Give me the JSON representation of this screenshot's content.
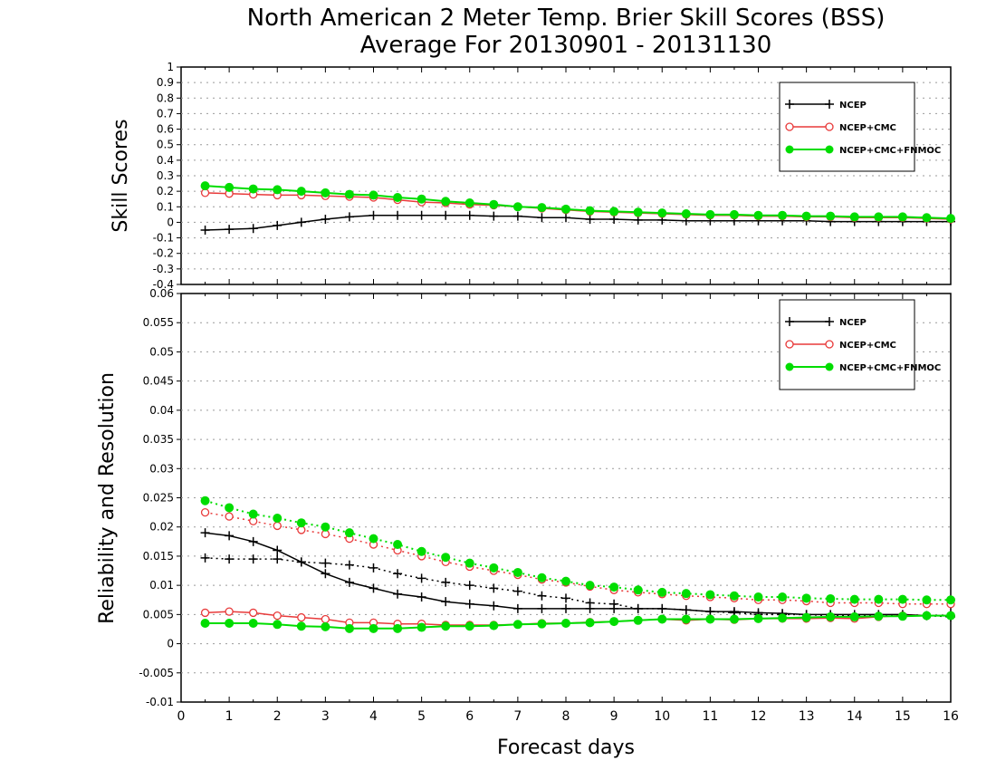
{
  "title_line1": "North American 2 Meter Temp. Brier Skill Scores (BSS)",
  "title_line2": "Average For 20130901 - 20131130",
  "colors": {
    "NCEP": "#000000",
    "NCEP+CMC": "#e83a3a",
    "NCEP+CMC+FNMOC": "#00dd00",
    "grid": "#9a9a9a",
    "axis": "#000000"
  },
  "chart_data": [
    {
      "type": "line",
      "ylabel": "Skill Scores",
      "xlabel": "",
      "xlim": [
        0,
        16
      ],
      "ylim": [
        -0.4,
        1
      ],
      "x_ticks": [
        0,
        1,
        2,
        3,
        4,
        5,
        6,
        7,
        8,
        9,
        10,
        11,
        12,
        13,
        14,
        15,
        16
      ],
      "y_ticks": [
        -0.4,
        -0.3,
        -0.2,
        -0.1,
        0,
        0.1,
        0.2,
        0.3,
        0.4,
        0.5,
        0.6,
        0.7,
        0.8,
        0.9,
        1
      ],
      "y_tick_labels": [
        "-0.4",
        "-0.3",
        "-0.2",
        "-0.1",
        "0",
        "0.1",
        "0.2",
        "0.3",
        "0.4",
        "0.5",
        "0.6",
        "0.7",
        "0.8",
        "0.9",
        "1"
      ],
      "grid": "horizontal dotted",
      "legend_position": "top-right",
      "x": [
        0.5,
        1,
        1.5,
        2,
        2.5,
        3,
        3.5,
        4,
        4.5,
        5,
        5.5,
        6,
        6.5,
        7,
        7.5,
        8,
        8.5,
        9,
        9.5,
        10,
        10.5,
        11,
        11.5,
        12,
        12.5,
        13,
        13.5,
        14,
        14.5,
        15,
        15.5,
        16
      ],
      "series": [
        {
          "name": "NCEP",
          "marker": "plus",
          "style": "solid",
          "values": [
            -0.05,
            -0.045,
            -0.04,
            -0.02,
            0.0,
            0.02,
            0.035,
            0.045,
            0.045,
            0.045,
            0.045,
            0.045,
            0.04,
            0.04,
            0.03,
            0.03,
            0.02,
            0.02,
            0.015,
            0.015,
            0.01,
            0.01,
            0.01,
            0.01,
            0.01,
            0.01,
            0.005,
            0.005,
            0.005,
            0.005,
            0.005,
            0.005
          ]
        },
        {
          "name": "NCEP+CMC",
          "marker": "open-circle",
          "style": "solid",
          "values": [
            0.19,
            0.185,
            0.18,
            0.175,
            0.175,
            0.17,
            0.165,
            0.16,
            0.145,
            0.13,
            0.125,
            0.115,
            0.11,
            0.1,
            0.09,
            0.08,
            0.07,
            0.065,
            0.06,
            0.055,
            0.05,
            0.045,
            0.045,
            0.04,
            0.04,
            0.035,
            0.035,
            0.03,
            0.03,
            0.03,
            0.025,
            0.02
          ]
        },
        {
          "name": "NCEP+CMC+FNMOC",
          "marker": "filled-circle",
          "style": "solid",
          "values": [
            0.235,
            0.225,
            0.215,
            0.21,
            0.2,
            0.19,
            0.18,
            0.175,
            0.16,
            0.15,
            0.135,
            0.125,
            0.115,
            0.1,
            0.095,
            0.085,
            0.075,
            0.07,
            0.065,
            0.06,
            0.055,
            0.05,
            0.05,
            0.045,
            0.045,
            0.04,
            0.04,
            0.035,
            0.035,
            0.035,
            0.03,
            0.025
          ]
        }
      ]
    },
    {
      "type": "line",
      "ylabel": "Reliability and Resolution",
      "xlabel": "Forecast days",
      "xlim": [
        0,
        16
      ],
      "ylim": [
        -0.01,
        0.06
      ],
      "x_ticks": [
        0,
        1,
        2,
        3,
        4,
        5,
        6,
        7,
        8,
        9,
        10,
        11,
        12,
        13,
        14,
        15,
        16
      ],
      "x_tick_labels": [
        "0",
        "1",
        "2",
        "3",
        "4",
        "5",
        "6",
        "7",
        "8",
        "9",
        "10",
        "11",
        "12",
        "13",
        "14",
        "15",
        "16"
      ],
      "y_ticks": [
        -0.01,
        -0.005,
        0,
        0.005,
        0.01,
        0.015,
        0.02,
        0.025,
        0.03,
        0.035,
        0.04,
        0.045,
        0.05,
        0.055,
        0.06
      ],
      "y_tick_labels": [
        "-0.01",
        "-0.005",
        "0",
        "0.005",
        "0.01",
        "0.015",
        "0.02",
        "0.025",
        "0.03",
        "0.035",
        "0.04",
        "0.045",
        "0.05",
        "0.055",
        "0.06"
      ],
      "grid": "horizontal dotted",
      "legend_position": "top-right",
      "x": [
        0.5,
        1,
        1.5,
        2,
        2.5,
        3,
        3.5,
        4,
        4.5,
        5,
        5.5,
        6,
        6.5,
        7,
        7.5,
        8,
        8.5,
        9,
        9.5,
        10,
        10.5,
        11,
        11.5,
        12,
        12.5,
        13,
        13.5,
        14,
        14.5,
        15,
        15.5,
        16
      ],
      "series": [
        {
          "name": "NCEP",
          "marker": "plus",
          "style": "solid",
          "values": [
            0.019,
            0.0185,
            0.0175,
            0.016,
            0.014,
            0.012,
            0.0105,
            0.0095,
            0.0085,
            0.008,
            0.0072,
            0.0068,
            0.0065,
            0.006,
            0.006,
            0.006,
            0.006,
            0.006,
            0.006,
            0.006,
            0.0058,
            0.0055,
            0.0055,
            0.0053,
            0.0052,
            0.005,
            0.005,
            0.005,
            0.005,
            0.005,
            0.0048,
            0.0048
          ]
        },
        {
          "name": "NCEP",
          "marker": "plus",
          "style": "dotted",
          "values": [
            0.0147,
            0.0145,
            0.0145,
            0.0145,
            0.014,
            0.0138,
            0.0135,
            0.013,
            0.012,
            0.0112,
            0.0105,
            0.01,
            0.0095,
            0.009,
            0.0082,
            0.0078,
            0.007,
            0.0068,
            0.006,
            0.006,
            0.0058,
            0.0055,
            0.0053,
            0.005,
            0.005,
            0.005,
            0.0048,
            0.0048,
            0.0048,
            0.0048,
            0.0048,
            0.0046
          ]
        },
        {
          "name": "NCEP+CMC",
          "marker": "open-circle",
          "style": "dotted",
          "values": [
            0.0225,
            0.0218,
            0.021,
            0.0202,
            0.0195,
            0.0188,
            0.018,
            0.017,
            0.016,
            0.015,
            0.014,
            0.0132,
            0.0125,
            0.0118,
            0.011,
            0.0105,
            0.0098,
            0.0092,
            0.0088,
            0.0085,
            0.0082,
            0.008,
            0.0078,
            0.0075,
            0.0075,
            0.0073,
            0.007,
            0.007,
            0.007,
            0.0068,
            0.0068,
            0.0068
          ]
        },
        {
          "name": "NCEP+CMC",
          "marker": "open-circle",
          "style": "solid",
          "values": [
            0.0053,
            0.0055,
            0.0053,
            0.0048,
            0.0045,
            0.0042,
            0.0036,
            0.0036,
            0.0034,
            0.0034,
            0.0032,
            0.0032,
            0.0032,
            0.0033,
            0.0035,
            0.0035,
            0.0037,
            0.0038,
            0.004,
            0.0042,
            0.004,
            0.0042,
            0.0041,
            0.0043,
            0.0043,
            0.0043,
            0.0044,
            0.0043,
            0.0046,
            0.0048,
            0.0048,
            0.0048
          ]
        },
        {
          "name": "NCEP+CMC+FNMOC",
          "marker": "filled-circle",
          "style": "dotted",
          "values": [
            0.0245,
            0.0233,
            0.0222,
            0.0215,
            0.0207,
            0.02,
            0.019,
            0.018,
            0.017,
            0.0158,
            0.0148,
            0.0138,
            0.013,
            0.0122,
            0.0113,
            0.0107,
            0.01,
            0.0097,
            0.0092,
            0.0088,
            0.0086,
            0.0084,
            0.0082,
            0.008,
            0.008,
            0.0078,
            0.0077,
            0.0076,
            0.0076,
            0.0076,
            0.0075,
            0.0075
          ]
        },
        {
          "name": "NCEP+CMC+FNMOC",
          "marker": "filled-circle",
          "style": "solid",
          "values": [
            0.0035,
            0.0035,
            0.0035,
            0.0033,
            0.003,
            0.0029,
            0.0026,
            0.0026,
            0.0026,
            0.0028,
            0.003,
            0.003,
            0.0031,
            0.0033,
            0.0034,
            0.0035,
            0.0036,
            0.0038,
            0.004,
            0.0042,
            0.0042,
            0.0042,
            0.0042,
            0.0043,
            0.0044,
            0.0045,
            0.0046,
            0.0046,
            0.0047,
            0.0047,
            0.0048,
            0.0048
          ]
        }
      ]
    }
  ],
  "legend_entries": [
    "NCEP",
    "NCEP+CMC",
    "NCEP+CMC+FNMOC"
  ]
}
